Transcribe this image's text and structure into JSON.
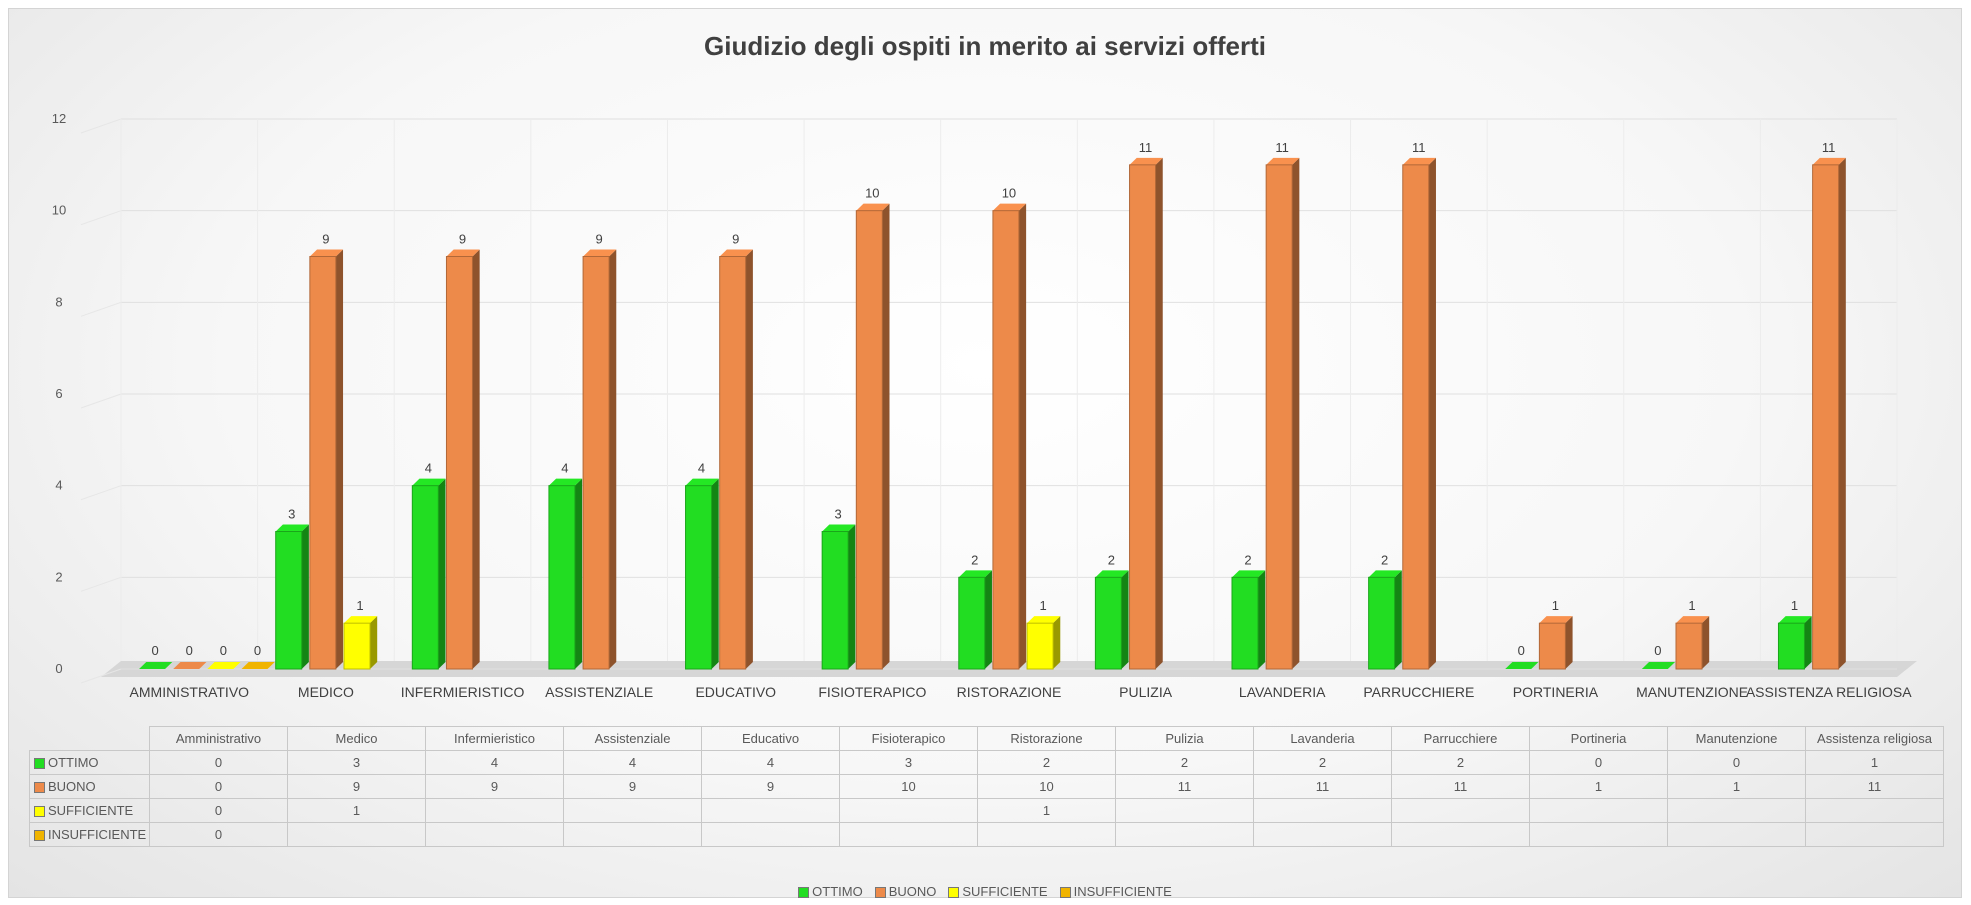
{
  "chart_data": {
    "type": "bar",
    "title": "Giudizio degli ospiti in merito ai servizi offerti",
    "ylim": [
      0,
      12
    ],
    "yticks": [
      0,
      2,
      4,
      6,
      8,
      10,
      12
    ],
    "grid": true,
    "legend_position": "bottom",
    "categories": [
      "AMMINISTRATIVO",
      "MEDICO",
      "INFERMIERISTICO",
      "ASSISTENZIALE",
      "EDUCATIVO",
      "FISIOTERAPICO",
      "RISTORAZIONE",
      "PULIZIA",
      "LAVANDERIA",
      "PARRUCCHIERE",
      "PORTINERIA",
      "MANUTENZIONE",
      "ASSISTENZA RELIGIOSA"
    ],
    "table_categories": [
      "Amministrativo",
      "Medico",
      "Infermieristico",
      "Assistenziale",
      "Educativo",
      "Fisioterapico",
      "Ristorazione",
      "Pulizia",
      "Lavanderia",
      "Parrucchiere",
      "Portineria",
      "Manutenzione",
      "Assistenza religiosa"
    ],
    "series": [
      {
        "name": "OTTIMO",
        "color": "#22dd22",
        "values": [
          0,
          3,
          4,
          4,
          4,
          3,
          2,
          2,
          2,
          2,
          0,
          0,
          1
        ]
      },
      {
        "name": "BUONO",
        "color": "#ed8a4a",
        "values": [
          0,
          9,
          9,
          9,
          9,
          10,
          10,
          11,
          11,
          11,
          1,
          1,
          11
        ]
      },
      {
        "name": "SUFFICIENTE",
        "color": "#ffff00",
        "values": [
          0,
          1,
          null,
          null,
          null,
          null,
          1,
          null,
          null,
          null,
          null,
          null,
          null
        ]
      },
      {
        "name": "INSUFFICIENTE",
        "color": "#f0b400",
        "values": [
          0,
          null,
          null,
          null,
          null,
          null,
          null,
          null,
          null,
          null,
          null,
          null,
          null
        ]
      }
    ]
  }
}
